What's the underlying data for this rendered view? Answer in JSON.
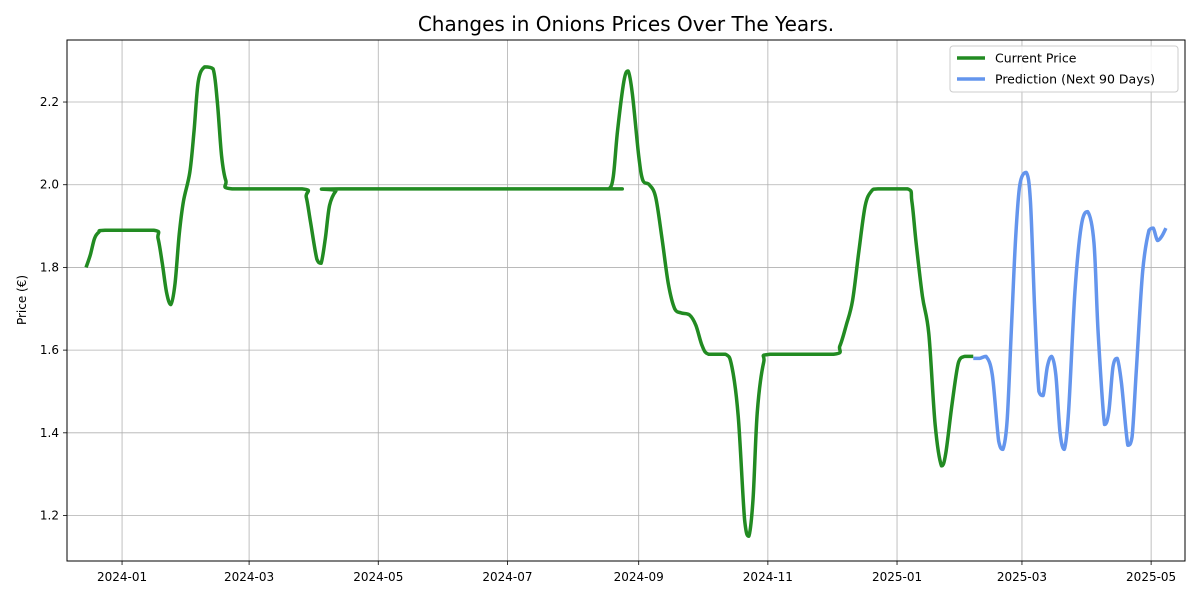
{
  "chart_data": {
    "type": "line",
    "title": "Changes in Onions Prices Over The Years.",
    "xlabel": "",
    "ylabel": "Price (€)",
    "xlim": [
      "2023-12-06",
      "2025-05-17"
    ],
    "ylim": [
      1.09,
      2.35
    ],
    "x_ticks": [
      "2024-01",
      "2024-03",
      "2024-05",
      "2024-07",
      "2024-09",
      "2024-11",
      "2025-01",
      "2025-03",
      "2025-05"
    ],
    "y_ticks": [
      1.2,
      1.4,
      1.6,
      1.8,
      2.0,
      2.2
    ],
    "grid": true,
    "legend_position": "top-right",
    "series": [
      {
        "name": "Current Price",
        "color": "#228b22",
        "points": [
          [
            "2023-12-15",
            1.8
          ],
          [
            "2023-12-17",
            1.83
          ],
          [
            "2023-12-19",
            1.87
          ],
          [
            "2023-12-21",
            1.885
          ],
          [
            "2023-12-24",
            1.89
          ],
          [
            "2024-01-16",
            1.89
          ],
          [
            "2024-01-18",
            1.87
          ],
          [
            "2024-01-20",
            1.81
          ],
          [
            "2024-01-22",
            1.74
          ],
          [
            "2024-01-24",
            1.71
          ],
          [
            "2024-01-26",
            1.76
          ],
          [
            "2024-01-28",
            1.88
          ],
          [
            "2024-01-30",
            1.96
          ],
          [
            "2024-02-02",
            2.03
          ],
          [
            "2024-02-04",
            2.13
          ],
          [
            "2024-02-06",
            2.25
          ],
          [
            "2024-02-09",
            2.285
          ],
          [
            "2024-02-13",
            2.28
          ],
          [
            "2024-02-15",
            2.2
          ],
          [
            "2024-02-17",
            2.07
          ],
          [
            "2024-02-19",
            2.01
          ],
          [
            "2024-02-22",
            1.99
          ],
          [
            "2024-03-26",
            1.99
          ],
          [
            "2024-03-28",
            1.97
          ],
          [
            "2024-03-30",
            1.91
          ],
          [
            "2024-04-02",
            1.82
          ],
          [
            "2024-04-04",
            1.81
          ],
          [
            "2024-04-06",
            1.87
          ],
          [
            "2024-04-08",
            1.95
          ],
          [
            "2024-04-11",
            1.985
          ],
          [
            "2024-04-14",
            1.99
          ],
          [
            "2024-08-14",
            1.99
          ],
          [
            "2024-08-18",
            1.99
          ],
          [
            "2024-08-20",
            2.02
          ],
          [
            "2024-08-22",
            2.13
          ],
          [
            "2024-08-25",
            2.25
          ],
          [
            "2024-08-27",
            2.275
          ],
          [
            "2024-08-29",
            2.22
          ],
          [
            "2024-09-01",
            2.07
          ],
          [
            "2024-09-03",
            2.01
          ],
          [
            "2024-09-06",
            2.0
          ],
          [
            "2024-09-09",
            1.97
          ],
          [
            "2024-09-12",
            1.87
          ],
          [
            "2024-09-15",
            1.76
          ],
          [
            "2024-09-18",
            1.7
          ],
          [
            "2024-09-21",
            1.69
          ],
          [
            "2024-09-25",
            1.685
          ],
          [
            "2024-09-28",
            1.66
          ],
          [
            "2024-10-01",
            1.61
          ],
          [
            "2024-10-04",
            1.59
          ],
          [
            "2024-10-12",
            1.59
          ],
          [
            "2024-10-15",
            1.56
          ],
          [
            "2024-10-18",
            1.44
          ],
          [
            "2024-10-21",
            1.19
          ],
          [
            "2024-10-23",
            1.15
          ],
          [
            "2024-10-25",
            1.24
          ],
          [
            "2024-10-27",
            1.45
          ],
          [
            "2024-10-30",
            1.57
          ],
          [
            "2024-11-02",
            1.59
          ],
          [
            "2024-12-02",
            1.59
          ],
          [
            "2024-12-05",
            1.61
          ],
          [
            "2024-12-08",
            1.66
          ],
          [
            "2024-12-11",
            1.72
          ],
          [
            "2024-12-14",
            1.84
          ],
          [
            "2024-12-17",
            1.95
          ],
          [
            "2024-12-20",
            1.985
          ],
          [
            "2024-12-23",
            1.99
          ],
          [
            "2025-01-06",
            1.99
          ],
          [
            "2025-01-08",
            1.96
          ],
          [
            "2025-01-10",
            1.86
          ],
          [
            "2025-01-13",
            1.73
          ],
          [
            "2025-01-16",
            1.64
          ],
          [
            "2025-01-19",
            1.42
          ],
          [
            "2025-01-22",
            1.32
          ],
          [
            "2025-01-24",
            1.35
          ],
          [
            "2025-01-27",
            1.47
          ],
          [
            "2025-01-30",
            1.57
          ],
          [
            "2025-02-02",
            1.585
          ],
          [
            "2025-02-06",
            1.585
          ]
        ]
      },
      {
        "name": "Prediction (Next 90 Days)",
        "color": "#6495ed",
        "points": [
          [
            "2025-02-06",
            1.58
          ],
          [
            "2025-02-09",
            1.58
          ],
          [
            "2025-02-12",
            1.585
          ],
          [
            "2025-02-15",
            1.54
          ],
          [
            "2025-02-18",
            1.38
          ],
          [
            "2025-02-20",
            1.36
          ],
          [
            "2025-02-22",
            1.43
          ],
          [
            "2025-02-24",
            1.65
          ],
          [
            "2025-02-26",
            1.87
          ],
          [
            "2025-02-28",
            2.0
          ],
          [
            "2025-03-03",
            2.03
          ],
          [
            "2025-03-05",
            1.96
          ],
          [
            "2025-03-07",
            1.7
          ],
          [
            "2025-03-09",
            1.5
          ],
          [
            "2025-03-11",
            1.49
          ],
          [
            "2025-03-13",
            1.56
          ],
          [
            "2025-03-15",
            1.585
          ],
          [
            "2025-03-17",
            1.54
          ],
          [
            "2025-03-19",
            1.4
          ],
          [
            "2025-03-21",
            1.36
          ],
          [
            "2025-03-23",
            1.45
          ],
          [
            "2025-03-26",
            1.74
          ],
          [
            "2025-03-29",
            1.9
          ],
          [
            "2025-04-01",
            1.935
          ],
          [
            "2025-04-04",
            1.86
          ],
          [
            "2025-04-06",
            1.64
          ],
          [
            "2025-04-09",
            1.42
          ],
          [
            "2025-04-11",
            1.45
          ],
          [
            "2025-04-13",
            1.56
          ],
          [
            "2025-04-15",
            1.58
          ],
          [
            "2025-04-17",
            1.52
          ],
          [
            "2025-04-20",
            1.37
          ],
          [
            "2025-04-22",
            1.39
          ],
          [
            "2025-04-24",
            1.55
          ],
          [
            "2025-04-27",
            1.79
          ],
          [
            "2025-04-30",
            1.89
          ],
          [
            "2025-05-02",
            1.895
          ],
          [
            "2025-05-04",
            1.865
          ],
          [
            "2025-05-06",
            1.875
          ],
          [
            "2025-05-08",
            1.895
          ]
        ]
      }
    ]
  }
}
